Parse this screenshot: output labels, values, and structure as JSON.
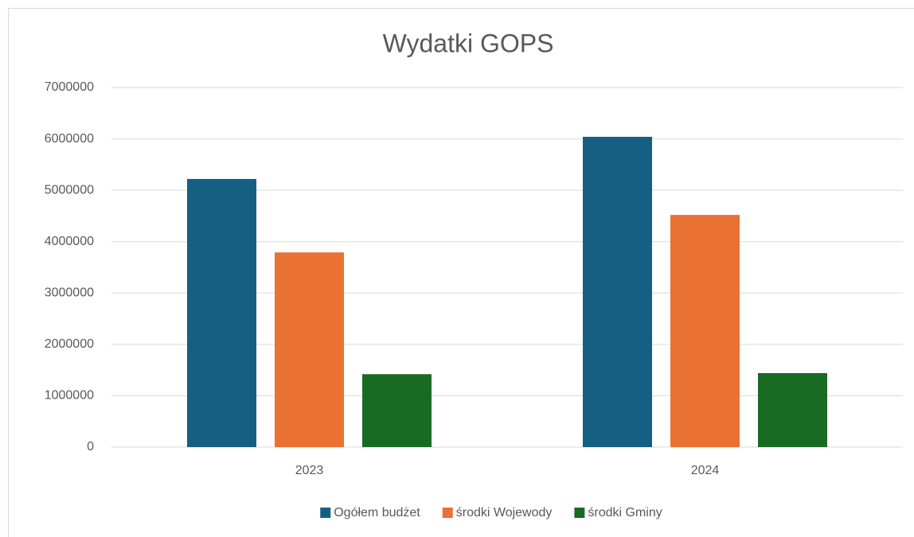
{
  "chart_data": {
    "type": "bar",
    "title": "Wydatki GOPS",
    "categories": [
      "2023",
      "2024"
    ],
    "series": [
      {
        "name": "Ogółem budżet",
        "color": "#156082",
        "values": [
          5220000,
          6040000
        ]
      },
      {
        "name": "środki Wojewody",
        "color": "#e97132",
        "values": [
          3790000,
          4520000
        ]
      },
      {
        "name": "środki Gminy",
        "color": "#196b24",
        "values": [
          1420000,
          1440000
        ]
      }
    ],
    "ylim": [
      0,
      7000000
    ],
    "yticks": [
      0,
      1000000,
      2000000,
      3000000,
      4000000,
      5000000,
      6000000,
      7000000
    ],
    "grid": true,
    "legend": "bottom"
  }
}
